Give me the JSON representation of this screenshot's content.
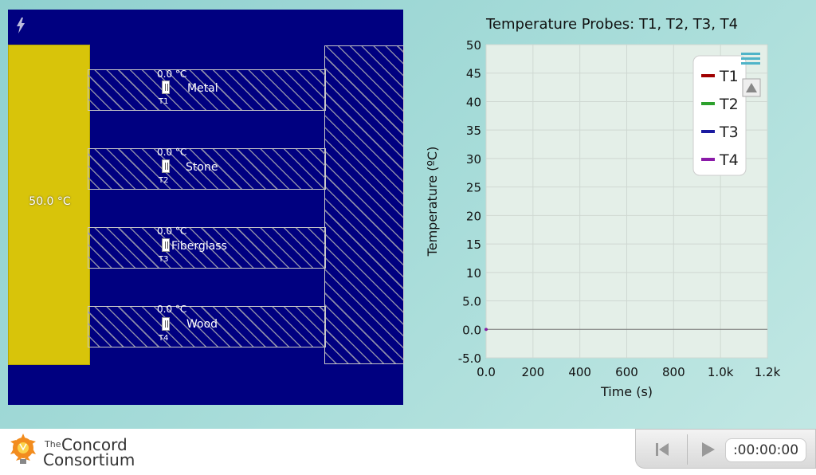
{
  "simulation": {
    "heater_temp": "50.0 °C",
    "bars": [
      {
        "material": "Metal",
        "probe_temp": "0.0 °C",
        "probe_name": "T1"
      },
      {
        "material": "Stone",
        "probe_temp": "0.0 °C",
        "probe_name": "T2"
      },
      {
        "material": "Fiberglass",
        "probe_temp": "0.0 °C",
        "probe_name": "T3"
      },
      {
        "material": "Wood",
        "probe_temp": "0.0 °C",
        "probe_name": "T4"
      }
    ]
  },
  "chart_data": {
    "type": "line",
    "title": "Temperature Probes: T1, T2, T3, T4",
    "xlabel": "Time (s)",
    "ylabel": "Temperature (ºC)",
    "xlim": [
      0,
      1200
    ],
    "ylim": [
      -5,
      50
    ],
    "x_ticks": [
      "0.0",
      "200",
      "400",
      "600",
      "800",
      "1.0k",
      "1.2k"
    ],
    "y_ticks": [
      "50",
      "45",
      "40",
      "35",
      "30",
      "25",
      "20",
      "15",
      "10",
      "5.0",
      "0.0",
      "-5.0"
    ],
    "grid": true,
    "legend_position": "top-right",
    "series": [
      {
        "name": "T1",
        "color": "#a00000",
        "x": [
          0
        ],
        "y": [
          0
        ]
      },
      {
        "name": "T2",
        "color": "#2ca02c",
        "x": [
          0
        ],
        "y": [
          0
        ]
      },
      {
        "name": "T3",
        "color": "#1a1aa0",
        "x": [
          0
        ],
        "y": [
          0
        ]
      },
      {
        "name": "T4",
        "color": "#8a1aa8",
        "x": [
          0
        ],
        "y": [
          0
        ]
      }
    ]
  },
  "footer": {
    "logo_the": "The",
    "logo_concord": "Concord",
    "logo_consortium": "Consortium",
    "time": ":00:00:00"
  }
}
